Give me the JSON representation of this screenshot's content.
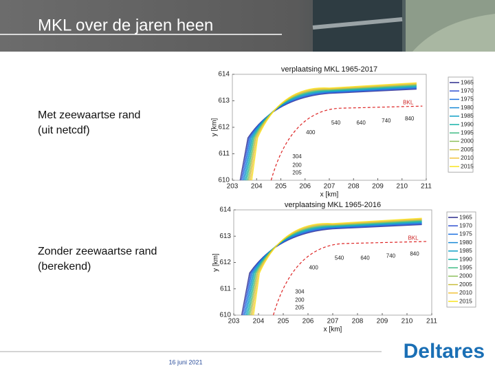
{
  "header": {
    "title": "MKL over de jaren heen"
  },
  "panels": [
    {
      "label_lines": [
        "Met zeewaartse rand",
        "(uit netcdf)"
      ],
      "figure": {
        "title": "verplaatsing MKL 1965-2017",
        "xlabel": "x [km]",
        "ylabel": "y [km]",
        "xticks": [
          203,
          204,
          205,
          206,
          207,
          208,
          209,
          210,
          211
        ],
        "yticks": [
          610,
          611,
          612,
          613,
          614
        ],
        "annotations": [
          "BKL",
          "540",
          "640",
          "740",
          "840",
          "400",
          "304",
          "200",
          "205"
        ],
        "legend": [
          {
            "name": "1965",
            "color": "#2b2a8c"
          },
          {
            "name": "1970",
            "color": "#2f4fd0"
          },
          {
            "name": "1975",
            "color": "#1a6fe0"
          },
          {
            "name": "1980",
            "color": "#1788d6"
          },
          {
            "name": "1985",
            "color": "#0e9fc6"
          },
          {
            "name": "1990",
            "color": "#14b0a8"
          },
          {
            "name": "1995",
            "color": "#3fbb85"
          },
          {
            "name": "2000",
            "color": "#8cbf5a"
          },
          {
            "name": "2005",
            "color": "#c8bc3c"
          },
          {
            "name": "2010",
            "color": "#f1c23a"
          },
          {
            "name": "2015",
            "color": "#f7e21a"
          }
        ]
      }
    },
    {
      "label_lines": [
        "Zonder zeewaartse rand",
        "(berekend)"
      ],
      "figure": {
        "title": "verplaatsing MKL 1965-2016",
        "xlabel": "x [km]",
        "ylabel": "y [km]",
        "xticks": [
          203,
          204,
          205,
          206,
          207,
          208,
          209,
          210,
          211
        ],
        "yticks": [
          610,
          611,
          612,
          613,
          614
        ],
        "annotations": [
          "BKL",
          "540",
          "640",
          "740",
          "840",
          "400",
          "304",
          "200",
          "205"
        ],
        "legend": [
          {
            "name": "1965",
            "color": "#2b2a8c"
          },
          {
            "name": "1970",
            "color": "#2f4fd0"
          },
          {
            "name": "1975",
            "color": "#1a6fe0"
          },
          {
            "name": "1980",
            "color": "#1788d6"
          },
          {
            "name": "1985",
            "color": "#0e9fc6"
          },
          {
            "name": "1990",
            "color": "#14b0a8"
          },
          {
            "name": "1995",
            "color": "#3fbb85"
          },
          {
            "name": "2000",
            "color": "#8cbf5a"
          },
          {
            "name": "2005",
            "color": "#c8bc3c"
          },
          {
            "name": "2010",
            "color": "#f1c23a"
          },
          {
            "name": "2015",
            "color": "#f7e21a"
          }
        ]
      }
    }
  ],
  "footer": {
    "date": "16 juni 2021",
    "logo": "Deltares"
  }
}
